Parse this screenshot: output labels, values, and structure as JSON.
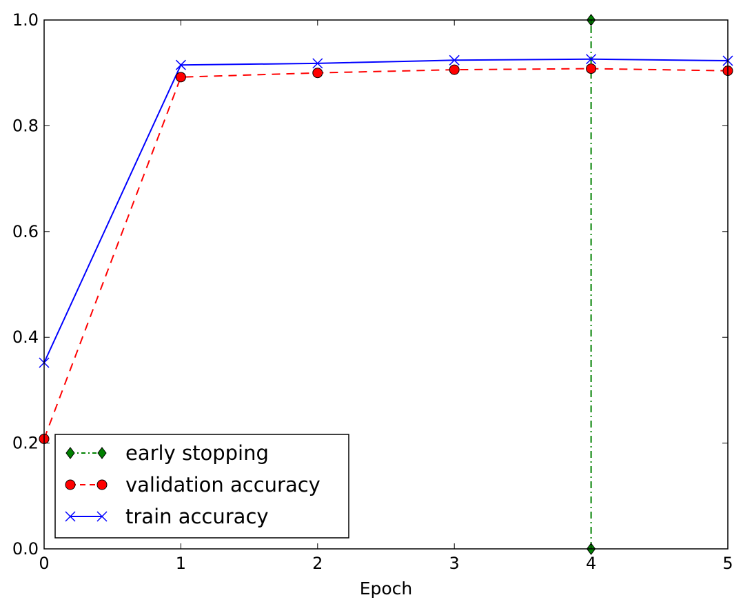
{
  "chart_data": {
    "type": "line",
    "title": "",
    "xlabel": "Epoch",
    "ylabel": "",
    "xlim": [
      0,
      5
    ],
    "ylim": [
      0.0,
      1.0
    ],
    "xticks": [
      "0",
      "1",
      "2",
      "3",
      "4",
      "5"
    ],
    "yticks": [
      "0.0",
      "0.2",
      "0.4",
      "0.6",
      "0.8",
      "1.0"
    ],
    "grid": false,
    "legend_position": "lower-left",
    "series": [
      {
        "name": "early stopping",
        "x": [
          4,
          4
        ],
        "values": [
          0.0,
          1.0
        ],
        "color": "#008000",
        "linestyle": "dashdot",
        "marker": "diamond"
      },
      {
        "name": "validation accuracy",
        "x": [
          0,
          1,
          2,
          3,
          4,
          5
        ],
        "values": [
          0.208,
          0.892,
          0.9,
          0.906,
          0.908,
          0.904
        ],
        "color": "#ff0000",
        "linestyle": "dashed",
        "marker": "circle"
      },
      {
        "name": "train accuracy",
        "x": [
          0,
          1,
          2,
          3,
          4,
          5
        ],
        "values": [
          0.352,
          0.915,
          0.918,
          0.924,
          0.926,
          0.923
        ],
        "color": "#0000ff",
        "linestyle": "solid",
        "marker": "x"
      }
    ]
  }
}
